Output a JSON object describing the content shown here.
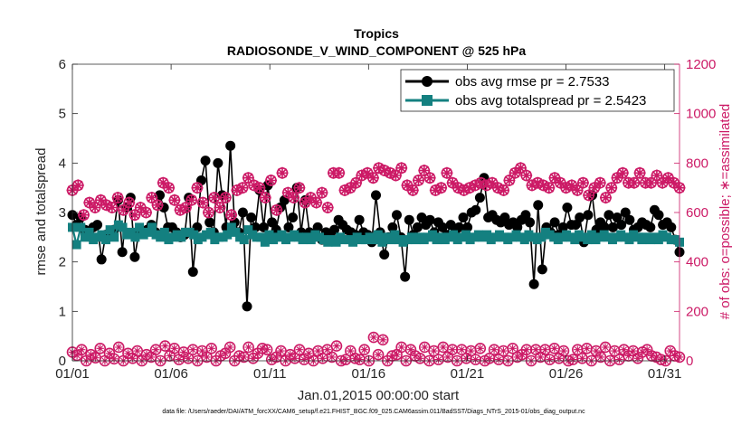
{
  "chart_data": {
    "type": "line",
    "title": "Tropics",
    "subtitle": "RADIOSONDE_V_WIND_COMPONENT @ 525 hPa",
    "xlabel": "Jan.01,2015 00:00:00 start",
    "ylabel": "rmse and totalspread",
    "ylabel_right": "# of obs: o=possible; ∗=assimilated",
    "footer": "data file: /Users/raeder/DAI/ATM_forcXX/CAM6_setup/f.e21.FHIST_BGC.f09_025.CAM6assim.011/BadSST/Diags_NTrS_2015-01/obs_diag_output.nc",
    "x_tick_labels": [
      "01/01",
      "01/06",
      "01/11",
      "01/16",
      "01/21",
      "01/26",
      "01/31"
    ],
    "x_tick_days": [
      0,
      5,
      10,
      15,
      20,
      25,
      30
    ],
    "xlim": [
      0,
      30.75
    ],
    "ylim": [
      0,
      6
    ],
    "ylim_right": [
      0,
      1200
    ],
    "y_ticks": [
      "0",
      "1",
      "2",
      "3",
      "4",
      "5",
      "6"
    ],
    "y_ticks_right": [
      "0",
      "200",
      "400",
      "600",
      "800",
      "1000",
      "1200"
    ],
    "colors": {
      "rmse": "#000000",
      "spread": "#148080",
      "obs": "#cc1a66",
      "axis": "#262626"
    },
    "legend": [
      {
        "label": "obs avg rmse pr = 2.7533",
        "series": "rmse"
      },
      {
        "label": "obs avg totalspread pr = 2.5423",
        "series": "spread"
      }
    ],
    "series": [
      {
        "name": "obs avg rmse",
        "axis": "left",
        "values": [
          2.95,
          2.75,
          2.9,
          2.65,
          2.6,
          2.7,
          2.75,
          2.05,
          2.55,
          2.6,
          2.65,
          3.25,
          2.2,
          3.1,
          3.3,
          2.1,
          2.6,
          2.6,
          2.65,
          2.75,
          2.6,
          3.35,
          3.1,
          2.7,
          2.7,
          2.6,
          2.5,
          2.55,
          3.3,
          1.8,
          2.7,
          3.65,
          4.05,
          2.8,
          2.6,
          4.0,
          3.35,
          2.7,
          4.35,
          2.8,
          2.6,
          3.0,
          1.1,
          2.9,
          2.7,
          3.45,
          2.7,
          3.55,
          2.8,
          2.65,
          3.1,
          3.25,
          2.7,
          2.9,
          3.5,
          2.6,
          3.25,
          2.6,
          2.5,
          2.7,
          2.45,
          2.6,
          2.55,
          2.65,
          2.85,
          2.75,
          2.65,
          2.6,
          2.55,
          2.85,
          2.6,
          2.55,
          2.4,
          3.35,
          2.6,
          2.15,
          2.5,
          2.7,
          2.95,
          2.5,
          1.7,
          2.85,
          2.55,
          2.7,
          2.9,
          2.75,
          2.85,
          2.6,
          2.8,
          2.7,
          2.55,
          2.75,
          2.6,
          2.7,
          2.9,
          2.7,
          3.0,
          3.05,
          3.3,
          3.7,
          2.9,
          2.95,
          2.85,
          2.8,
          2.9,
          2.75,
          2.8,
          2.7,
          2.85,
          2.95,
          2.8,
          1.55,
          3.15,
          1.85,
          2.7,
          2.6,
          2.8,
          2.55,
          2.7,
          3.1,
          2.75,
          2.75,
          2.9,
          2.4,
          2.95,
          3.35,
          2.65,
          2.8,
          2.7,
          2.95,
          2.7,
          2.9,
          2.75,
          3.0,
          2.85,
          2.65,
          2.7,
          2.8,
          2.75,
          2.7,
          3.05,
          2.95,
          2.75,
          2.8,
          2.7,
          2.45,
          2.2
        ]
      },
      {
        "name": "obs avg totalspread",
        "axis": "left",
        "values": [
          2.7,
          2.35,
          2.7,
          2.5,
          2.6,
          2.45,
          2.5,
          2.55,
          2.45,
          2.65,
          2.5,
          2.75,
          2.7,
          2.55,
          2.6,
          2.5,
          2.7,
          2.55,
          2.6,
          2.7,
          2.55,
          2.5,
          2.6,
          2.45,
          2.5,
          2.55,
          2.5,
          2.6,
          2.6,
          2.55,
          2.45,
          2.5,
          2.55,
          2.6,
          2.45,
          2.5,
          2.5,
          2.55,
          2.7,
          2.6,
          2.5,
          2.45,
          2.65,
          2.55,
          2.5,
          2.5,
          2.4,
          2.55,
          2.45,
          2.5,
          2.55,
          2.45,
          2.5,
          2.55,
          2.5,
          2.45,
          2.5,
          2.45,
          2.55,
          2.5,
          2.45,
          2.4,
          2.45,
          2.4,
          2.5,
          2.45,
          2.45,
          2.4,
          2.5,
          2.45,
          2.45,
          2.5,
          2.45,
          2.55,
          2.4,
          2.5,
          2.45,
          2.55,
          2.45,
          2.4,
          2.45,
          2.5,
          2.45,
          2.5,
          2.45,
          2.5,
          2.55,
          2.45,
          2.5,
          2.45,
          2.5,
          2.55,
          2.45,
          2.5,
          2.55,
          2.45,
          2.5,
          2.55,
          2.5,
          2.55,
          2.45,
          2.5,
          2.55,
          2.5,
          2.45,
          2.5,
          2.55,
          2.5,
          2.45,
          2.55,
          2.5,
          2.45,
          2.5,
          2.6,
          2.55,
          2.5,
          2.45,
          2.5,
          2.55,
          2.5,
          2.45,
          2.55,
          2.5,
          2.45,
          2.55,
          2.45,
          2.5,
          2.55,
          2.5,
          2.45,
          2.5,
          2.55,
          2.5,
          2.45,
          2.55,
          2.5,
          2.45,
          2.5,
          2.45,
          2.5,
          2.45,
          2.55,
          2.5,
          2.45,
          2.45,
          2.4
        ]
      },
      {
        "name": "# obs possible",
        "axis": "right",
        "marker": "circle",
        "values": [
          35,
          22,
          45,
          0,
          25,
          12,
          50,
          0,
          30,
          8,
          55,
          0,
          30,
          10,
          40,
          0,
          25,
          15,
          45,
          0,
          60,
          20,
          50,
          5,
          35,
          10,
          45,
          0,
          40,
          15,
          50,
          0,
          20,
          30,
          55,
          0,
          20,
          15,
          55,
          10,
          30,
          50,
          45,
          5,
          15,
          40,
          0,
          25,
          10,
          45,
          5,
          30,
          0,
          40,
          10,
          45,
          15,
          60,
          0,
          5,
          40,
          10,
          5,
          45,
          0,
          95,
          25,
          85,
          0,
          20,
          25,
          55,
          0,
          45,
          20,
          10,
          55,
          0,
          40,
          5,
          55,
          15,
          45,
          0,
          45,
          10,
          40,
          5,
          50,
          0,
          10,
          45,
          5,
          40,
          0,
          50,
          15,
          25,
          45,
          0,
          45,
          15,
          45,
          5,
          50,
          10,
          40,
          0,
          5,
          45,
          10,
          50,
          0,
          40,
          15,
          55,
          0,
          40,
          5,
          45,
          20,
          40,
          10,
          35,
          45,
          20,
          15,
          5,
          0,
          40,
          20,
          15
        ]
      },
      {
        "name": "# obs assimilated",
        "axis": "right",
        "marker": "star",
        "values": [
          690,
          710,
          590,
          640,
          620,
          650,
          630,
          620,
          660,
          610,
          640,
          590,
          620,
          600,
          660,
          630,
          720,
          700,
          650,
          610,
          620,
          650,
          700,
          640,
          600,
          660,
          620,
          660,
          590,
          690,
          700,
          740,
          710,
          700,
          660,
          730,
          610,
          760,
          680,
          660,
          700,
          640,
          660,
          640,
          680,
          620,
          760,
          760,
          690,
          700,
          720,
          750,
          760,
          740,
          780,
          770,
          760,
          750,
          780,
          710,
          690,
          730,
          770,
          740,
          690,
          700,
          760,
          720,
          700,
          690,
          700,
          710,
          720,
          710,
          720,
          700,
          690,
          730,
          760,
          780,
          750,
          710,
          720,
          710,
          700,
          740,
          720,
          700,
          710,
          690,
          720,
          670,
          700,
          720,
          660,
          700,
          740,
          760,
          720,
          720,
          760,
          720,
          720,
          750,
          720,
          740,
          720,
          700
        ]
      }
    ]
  }
}
